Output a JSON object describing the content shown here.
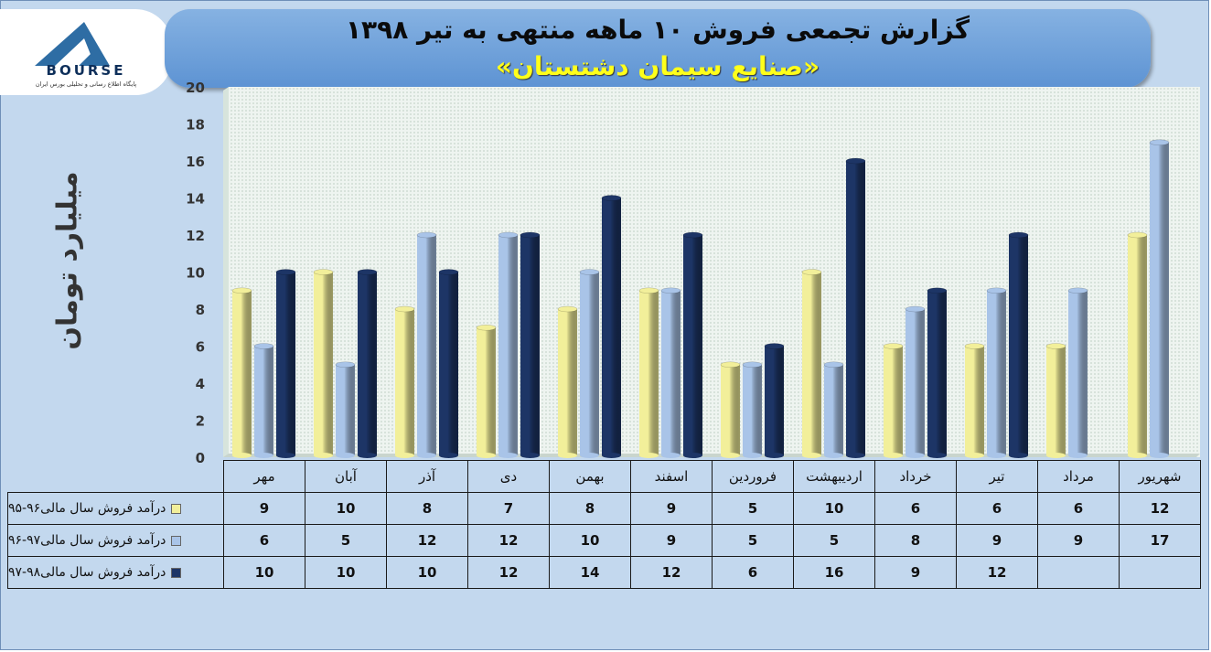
{
  "title": "گزارش تجمعی فروش ۱۰ ماهه منتهی به تیر ۱۳۹۸",
  "subtitle": "«صنایع سیمان دشتستان»",
  "logo": {
    "wordmark": "BOURSE",
    "tagline": "پایگاه اطلاع رسانی و تحلیلی بورس ایران",
    "colors": {
      "mark": "#2e6da4",
      "wordmark": "#0e2f5a"
    }
  },
  "colors": {
    "background": "#c3d8ee",
    "banner": "#6d9fd9",
    "title_text": "#0b0b0b",
    "subtitle_text": "#ffff1a",
    "plot_background": "#eaf2ee"
  },
  "chart_data": {
    "type": "bar",
    "orientation": "vertical",
    "three_d": true,
    "title": "گزارش تجمعی فروش ۱۰ ماهه منتهی به تیر ۱۳۹۸",
    "subtitle": "«صنایع سیمان دشتستان»",
    "xlabel": "",
    "ylabel": "میلیارد تومان",
    "ylim": [
      0,
      20
    ],
    "yticks": [
      0,
      2,
      4,
      6,
      8,
      10,
      12,
      14,
      16,
      18,
      20
    ],
    "grid": false,
    "legend": "data-table",
    "categories": [
      "مهر",
      "آبان",
      "آذر",
      "دی",
      "بهمن",
      "اسفند",
      "فروردین",
      "اردیبهشت",
      "خرداد",
      "تیر",
      "مرداد",
      "شهریور"
    ],
    "series": [
      {
        "name": "درآمد فروش سال مالی۹۶-۹۵",
        "color": "#f2ef9a",
        "values": [
          9,
          10,
          8,
          7,
          8,
          9,
          5,
          10,
          6,
          6,
          6,
          12
        ]
      },
      {
        "name": "درآمد فروش سال مالی۹۷-۹۶",
        "color": "#a9c4e8",
        "values": [
          6,
          5,
          12,
          12,
          10,
          9,
          5,
          5,
          8,
          9,
          9,
          17
        ]
      },
      {
        "name": "درآمد فروش سال مالی۹۸-۹۷",
        "color": "#1d3566",
        "values": [
          10,
          10,
          10,
          12,
          14,
          12,
          6,
          16,
          9,
          12,
          null,
          null
        ]
      }
    ]
  }
}
